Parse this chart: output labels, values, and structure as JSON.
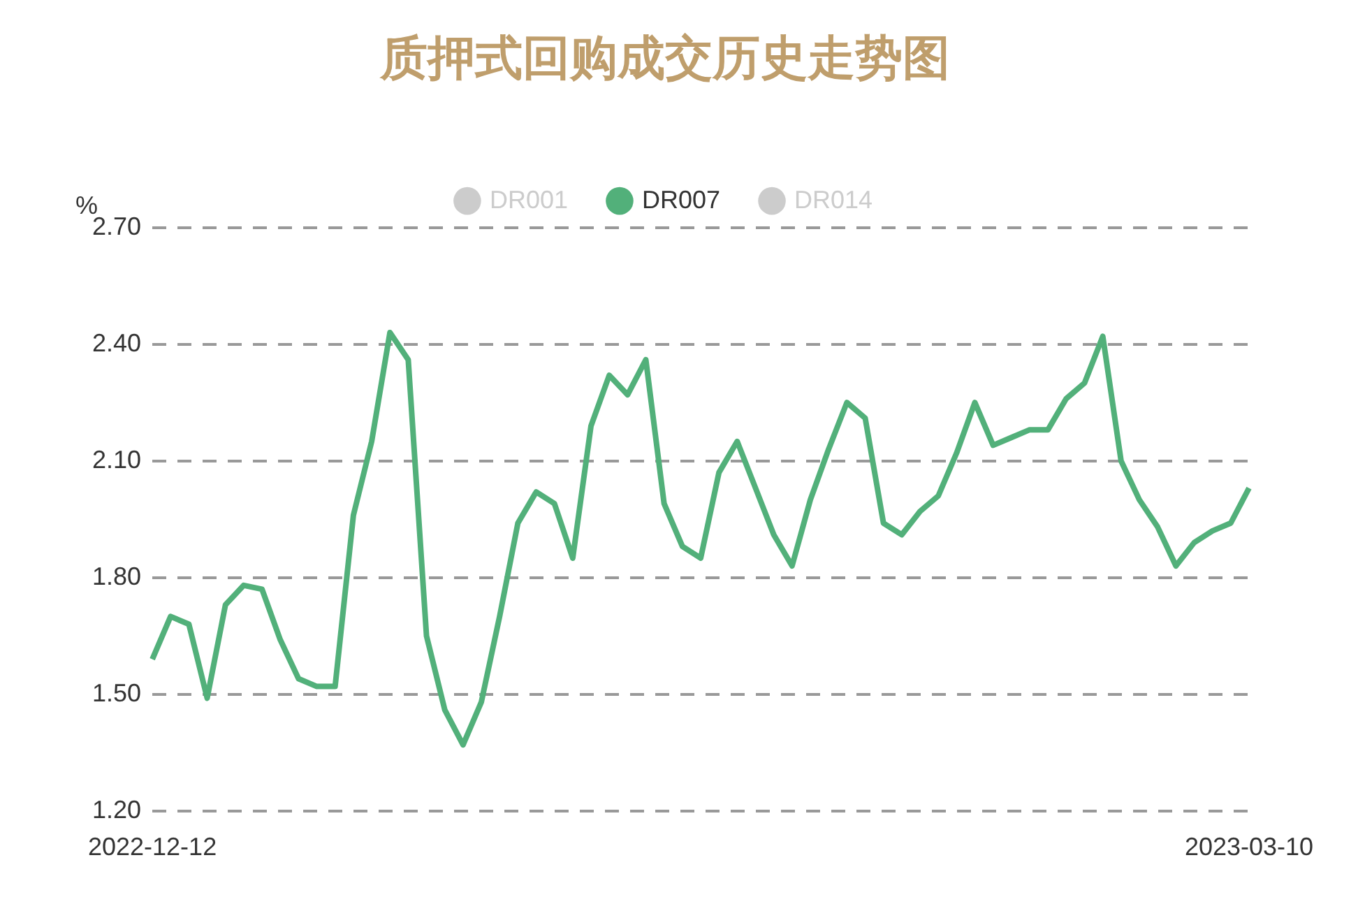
{
  "chart_data": {
    "type": "line",
    "title": "质押式回购成交历史走势图",
    "ylabel": "%",
    "categories": [
      "2022-12-12",
      null,
      null,
      null,
      null,
      null,
      null,
      null,
      null,
      null,
      null,
      null,
      null,
      null,
      null,
      null,
      null,
      null,
      null,
      null,
      null,
      null,
      null,
      null,
      null,
      null,
      null,
      null,
      null,
      null,
      null,
      null,
      null,
      null,
      null,
      null,
      null,
      null,
      null,
      null,
      null,
      null,
      null,
      null,
      null,
      null,
      null,
      null,
      null,
      null,
      null,
      null,
      null,
      null,
      null,
      null,
      null,
      null,
      null,
      null,
      "2023-03-10"
    ],
    "series": [
      {
        "name": "DR001",
        "color": "#cccccc",
        "values": [
          null,
          null,
          null,
          null,
          null,
          null,
          null,
          null,
          null,
          null,
          null,
          null,
          null,
          null,
          null,
          null,
          null,
          null,
          null,
          null,
          null,
          null,
          null,
          null,
          null,
          null,
          null,
          null,
          null,
          null,
          null,
          null,
          null,
          null,
          null,
          null,
          null,
          null,
          null,
          null,
          null,
          null,
          null,
          null,
          null,
          null,
          null,
          null,
          null,
          null,
          null,
          null,
          null,
          null,
          null,
          null,
          null,
          null,
          null,
          null,
          null
        ]
      },
      {
        "name": "DR007",
        "color": "#52b07a",
        "values": [
          1.59,
          1.7,
          1.68,
          1.49,
          1.73,
          1.78,
          1.77,
          1.64,
          1.54,
          1.52,
          1.52,
          1.96,
          2.15,
          2.43,
          2.36,
          1.65,
          1.46,
          1.37,
          1.48,
          1.7,
          1.94,
          2.02,
          1.99,
          1.85,
          2.19,
          2.32,
          2.27,
          2.36,
          1.99,
          1.88,
          1.85,
          2.07,
          2.15,
          2.03,
          1.91,
          1.83,
          2.0,
          2.13,
          2.25,
          2.21,
          1.94,
          1.91,
          1.97,
          2.01,
          2.12,
          2.25,
          2.14,
          2.16,
          2.18,
          2.18,
          2.26,
          2.3,
          2.42,
          2.1,
          2.0,
          1.93,
          1.83,
          1.89,
          1.92,
          1.94,
          2.03
        ]
      },
      {
        "name": "DR014",
        "color": "#cccccc",
        "values": [
          null,
          null,
          null,
          null,
          null,
          null,
          null,
          null,
          null,
          null,
          null,
          null,
          null,
          null,
          null,
          null,
          null,
          null,
          null,
          null,
          null,
          null,
          null,
          null,
          null,
          null,
          null,
          null,
          null,
          null,
          null,
          null,
          null,
          null,
          null,
          null,
          null,
          null,
          null,
          null,
          null,
          null,
          null,
          null,
          null,
          null,
          null,
          null,
          null,
          null,
          null,
          null,
          null,
          null,
          null,
          null,
          null,
          null,
          null,
          null,
          null
        ]
      }
    ],
    "ylim": [
      1.2,
      2.7
    ],
    "yticks": [
      {
        "value": 1.2,
        "label": "1.20"
      },
      {
        "value": 1.5,
        "label": "1.50"
      },
      {
        "value": 1.8,
        "label": "1.80"
      },
      {
        "value": 2.1,
        "label": "2.10"
      },
      {
        "value": 2.4,
        "label": "2.40"
      },
      {
        "value": 2.7,
        "label": "2.70"
      }
    ],
    "grid": "y",
    "legend": "top",
    "marker": "none",
    "line_style": "solid"
  }
}
